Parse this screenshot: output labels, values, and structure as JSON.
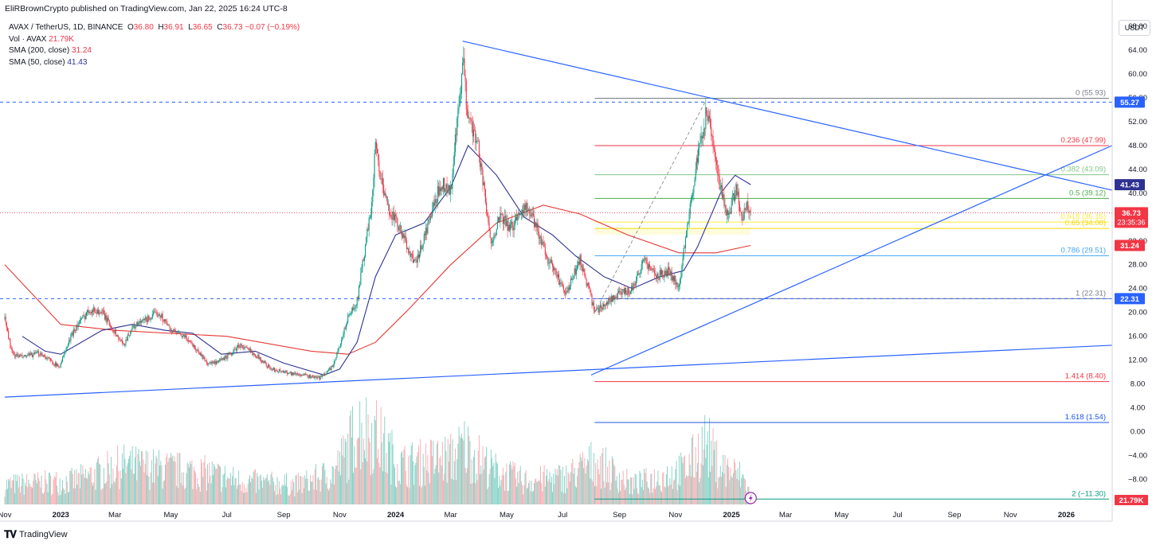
{
  "header": {
    "publisher_line": "EliRBrownCrypto published on TradingView.com, Jan 22, 2025 16:24 UTC-8"
  },
  "legend": {
    "symbol_line": "AVAX / TetherUS, 1D, BINANCE",
    "ohlc": {
      "O": "36.80",
      "H": "36.91",
      "L": "36.65",
      "C": "36.73",
      "change": "−0.07 (−0.19%)"
    },
    "volume": {
      "label": "Vol · AVAX",
      "value": "21.79K"
    },
    "sma200": {
      "label": "SMA (200, close)",
      "value": "31.24"
    },
    "sma50": {
      "label": "SMA (50, close)",
      "value": "41.43"
    }
  },
  "footer": {
    "brand": "TradingView",
    "logo": "tradingview-logo-icon"
  },
  "colors": {
    "up": "#089981",
    "down": "#f23645",
    "sma50": "#2e3192",
    "sma200": "#e53935",
    "trend": "#2962ff",
    "vol_up": "#7fd0c3",
    "vol_down": "#f7a9ae"
  },
  "chart_data": {
    "type": "candlestick",
    "symbol": "AVAX / TetherUS",
    "interval": "1D",
    "exchange": "BINANCE",
    "y_unit": "USDT",
    "ylim": [
      -13,
      70
    ],
    "y_ticks": [
      68,
      64,
      60,
      56,
      52,
      48,
      44,
      40,
      36,
      32,
      28,
      24,
      20,
      16,
      12,
      8,
      4,
      0,
      -4,
      -8
    ],
    "y_tick_labels": [
      "68.00",
      "64.00",
      "60.00",
      "56.00",
      "52.00",
      "48.00",
      "44.00",
      "40.00",
      "36.00",
      "32.00",
      "28.00",
      "24.00",
      "20.00",
      "16.00",
      "12.00",
      "8.00",
      "4.00",
      "0.00",
      "−4.00",
      "−8.00"
    ],
    "x_range": [
      "2022-11-01",
      "2026-02-20"
    ],
    "x_ticks": [
      {
        "date": "2022-11-01",
        "label": "Nov"
      },
      {
        "date": "2023-01-01",
        "label": "2023"
      },
      {
        "date": "2023-03-01",
        "label": "Mar"
      },
      {
        "date": "2023-05-01",
        "label": "May"
      },
      {
        "date": "2023-07-01",
        "label": "Jul"
      },
      {
        "date": "2023-09-01",
        "label": "Sep"
      },
      {
        "date": "2023-11-01",
        "label": "Nov"
      },
      {
        "date": "2024-01-01",
        "label": "2024"
      },
      {
        "date": "2024-03-01",
        "label": "Mar"
      },
      {
        "date": "2024-05-01",
        "label": "May"
      },
      {
        "date": "2024-07-01",
        "label": "Jul"
      },
      {
        "date": "2024-09-01",
        "label": "Sep"
      },
      {
        "date": "2024-11-01",
        "label": "Nov"
      },
      {
        "date": "2025-01-01",
        "label": "2025"
      },
      {
        "date": "2025-03-01",
        "label": "Mar"
      },
      {
        "date": "2025-05-01",
        "label": "May"
      },
      {
        "date": "2025-07-01",
        "label": "Jul"
      },
      {
        "date": "2025-09-01",
        "label": "Sep"
      },
      {
        "date": "2025-11-01",
        "label": "Nov"
      },
      {
        "date": "2026-01-01",
        "label": "2026"
      }
    ],
    "price_path": [
      [
        "2022-11-01",
        19
      ],
      [
        "2022-11-09",
        13
      ],
      [
        "2022-11-20",
        12.5
      ],
      [
        "2022-12-10",
        13.2
      ],
      [
        "2022-12-30",
        10.8
      ],
      [
        "2023-01-15",
        17
      ],
      [
        "2023-02-01",
        20.5
      ],
      [
        "2023-02-15",
        20
      ],
      [
        "2023-03-10",
        14.5
      ],
      [
        "2023-03-20",
        17.5
      ],
      [
        "2023-04-18",
        20
      ],
      [
        "2023-05-01",
        17
      ],
      [
        "2023-05-20",
        15.5
      ],
      [
        "2023-06-10",
        11.5
      ],
      [
        "2023-06-20",
        11.5
      ],
      [
        "2023-07-05",
        13
      ],
      [
        "2023-07-15",
        14.5
      ],
      [
        "2023-08-01",
        13
      ],
      [
        "2023-08-18",
        10.5
      ],
      [
        "2023-09-10",
        9.8
      ],
      [
        "2023-10-10",
        9
      ],
      [
        "2023-10-25",
        11
      ],
      [
        "2023-11-10",
        19
      ],
      [
        "2023-11-20",
        22
      ],
      [
        "2023-12-05",
        37
      ],
      [
        "2023-12-10",
        48
      ],
      [
        "2023-12-20",
        39
      ],
      [
        "2024-01-05",
        34
      ],
      [
        "2024-01-23",
        28
      ],
      [
        "2024-02-08",
        36
      ],
      [
        "2024-02-20",
        42
      ],
      [
        "2024-03-01",
        40
      ],
      [
        "2024-03-05",
        47
      ],
      [
        "2024-03-15",
        62
      ],
      [
        "2024-03-18",
        55
      ],
      [
        "2024-04-01",
        47
      ],
      [
        "2024-04-13",
        32
      ],
      [
        "2024-04-25",
        36
      ],
      [
        "2024-05-05",
        34
      ],
      [
        "2024-05-20",
        38
      ],
      [
        "2024-06-01",
        35
      ],
      [
        "2024-06-15",
        29
      ],
      [
        "2024-07-05",
        23
      ],
      [
        "2024-07-20",
        29
      ],
      [
        "2024-08-05",
        20
      ],
      [
        "2024-08-20",
        22
      ],
      [
        "2024-09-01",
        23
      ],
      [
        "2024-09-15",
        24
      ],
      [
        "2024-09-28",
        29
      ],
      [
        "2024-10-10",
        26
      ],
      [
        "2024-10-25",
        27
      ],
      [
        "2024-11-05",
        24
      ],
      [
        "2024-11-12",
        33
      ],
      [
        "2024-11-22",
        43
      ],
      [
        "2024-12-04",
        53
      ],
      [
        "2024-12-10",
        50
      ],
      [
        "2024-12-18",
        42
      ],
      [
        "2024-12-28",
        36
      ],
      [
        "2025-01-06",
        41
      ],
      [
        "2025-01-13",
        35
      ],
      [
        "2025-01-18",
        38.5
      ],
      [
        "2025-01-22",
        36.73
      ]
    ],
    "sma50_path": [
      [
        "2022-11-20",
        16
      ],
      [
        "2022-12-15",
        13.5
      ],
      [
        "2023-01-01",
        13
      ],
      [
        "2023-02-15",
        17
      ],
      [
        "2023-03-20",
        18
      ],
      [
        "2023-04-25",
        17
      ],
      [
        "2023-05-25",
        16.5
      ],
      [
        "2023-06-25",
        13
      ],
      [
        "2023-08-01",
        13.5
      ],
      [
        "2023-09-01",
        11.5
      ],
      [
        "2023-10-15",
        9.5
      ],
      [
        "2023-11-01",
        10.5
      ],
      [
        "2023-11-20",
        15
      ],
      [
        "2023-12-10",
        26
      ],
      [
        "2024-01-01",
        33
      ],
      [
        "2024-02-01",
        35
      ],
      [
        "2024-03-01",
        41
      ],
      [
        "2024-03-20",
        48
      ],
      [
        "2024-04-20",
        43
      ],
      [
        "2024-05-20",
        36
      ],
      [
        "2024-06-20",
        33
      ],
      [
        "2024-07-15",
        29.5
      ],
      [
        "2024-08-15",
        26
      ],
      [
        "2024-09-15",
        24
      ],
      [
        "2024-10-15",
        26
      ],
      [
        "2024-11-10",
        27
      ],
      [
        "2024-11-25",
        31
      ],
      [
        "2024-12-20",
        40
      ],
      [
        "2025-01-05",
        43
      ],
      [
        "2025-01-22",
        41.43
      ]
    ],
    "sma200_path": [
      [
        "2022-11-01",
        28
      ],
      [
        "2023-01-01",
        18
      ],
      [
        "2023-03-01",
        17
      ],
      [
        "2023-07-01",
        16
      ],
      [
        "2023-10-01",
        13.5
      ],
      [
        "2023-11-10",
        13
      ],
      [
        "2023-12-10",
        15
      ],
      [
        "2024-01-15",
        20.5
      ],
      [
        "2024-03-01",
        28
      ],
      [
        "2024-04-20",
        35
      ],
      [
        "2024-06-10",
        38
      ],
      [
        "2024-07-20",
        36.5
      ],
      [
        "2024-09-10",
        33
      ],
      [
        "2024-11-05",
        30
      ],
      [
        "2024-12-15",
        30
      ],
      [
        "2025-01-22",
        31.24
      ]
    ],
    "volume_path": [
      [
        "2022-11-01",
        0.25
      ],
      [
        "2023-01-15",
        0.3
      ],
      [
        "2023-03-10",
        0.5
      ],
      [
        "2023-06-10",
        0.4
      ],
      [
        "2023-07-15",
        0.3
      ],
      [
        "2023-09-15",
        0.25
      ],
      [
        "2023-10-25",
        0.4
      ],
      [
        "2023-11-10",
        0.7
      ],
      [
        "2023-11-20",
        1.0
      ],
      [
        "2023-12-10",
        0.9
      ],
      [
        "2024-01-05",
        0.5
      ],
      [
        "2024-03-05",
        0.6
      ],
      [
        "2024-03-15",
        0.75
      ],
      [
        "2024-04-15",
        0.45
      ],
      [
        "2024-05-20",
        0.3
      ],
      [
        "2024-07-05",
        0.35
      ],
      [
        "2024-08-05",
        0.55
      ],
      [
        "2024-09-15",
        0.25
      ],
      [
        "2024-11-12",
        0.45
      ],
      [
        "2024-12-04",
        0.8
      ],
      [
        "2024-12-18",
        0.5
      ],
      [
        "2025-01-13",
        0.35
      ],
      [
        "2025-01-22",
        0.12
      ]
    ],
    "volume_label": "21.79K",
    "horizontal_levels": [
      {
        "price": 55.27,
        "label": "55.27",
        "style": "dashed",
        "color": "#2962ff"
      },
      {
        "price": 22.31,
        "label": "22.31",
        "style": "dashed",
        "color": "#2962ff"
      }
    ],
    "price_line": {
      "price": 36.73,
      "label": "36.73",
      "countdown": "23:35:36",
      "color": "#f23645"
    },
    "axis_badges": [
      {
        "price": 41.43,
        "label": "41.43",
        "color": "#2e3192"
      },
      {
        "price": 31.24,
        "label": "31.24",
        "color": "#f23645"
      }
    ],
    "fib": {
      "start_date": "2024-08-05",
      "end_date": "2025-01-22",
      "levels": [
        {
          "ratio": "0",
          "price": 55.93,
          "label": "0 (55.93)",
          "color": "#787b86"
        },
        {
          "ratio": "0.236",
          "price": 47.99,
          "label": "0.236 (47.99)",
          "color": "#f23645"
        },
        {
          "ratio": "0.382",
          "price": 43.09,
          "label": "0.382 (43.09)",
          "color": "#81c784"
        },
        {
          "ratio": "0.5",
          "price": 39.12,
          "label": "0.5 (39.12)",
          "color": "#4caf50"
        },
        {
          "ratio": "0.618",
          "price": 35.15,
          "label": "0.618 (35.15)",
          "color": "#ffeb3b"
        },
        {
          "ratio": "0.65",
          "price": 34.08,
          "label": "0.65 (34.08)",
          "color": "#f5d800"
        },
        {
          "ratio": "0.786",
          "price": 29.51,
          "label": "0.786 (29.51)",
          "color": "#42a5f5"
        },
        {
          "ratio": "1",
          "price": 22.31,
          "label": "1 (22.31)",
          "color": "#787b86"
        },
        {
          "ratio": "1.414",
          "price": 8.4,
          "label": "1.414 (8.40)",
          "color": "#f23645"
        },
        {
          "ratio": "1.618",
          "price": 1.54,
          "label": "1.618 (1.54)",
          "color": "#1e53e5"
        },
        {
          "ratio": "2",
          "price": -11.3,
          "label": "2 (−11.30)",
          "color": "#089981"
        }
      ]
    },
    "trendlines": [
      {
        "name": "descending-resistance",
        "from": [
          "2024-03-14",
          65.5
        ],
        "to": [
          "2026-02-20",
          40.5
        ]
      },
      {
        "name": "ascending-support",
        "from": [
          "2024-08-01",
          9.5
        ],
        "to": [
          "2026-02-20",
          48
        ]
      },
      {
        "name": "long-term-support",
        "from": [
          "2022-11-01",
          5.8
        ],
        "to": [
          "2026-02-20",
          14.5
        ]
      }
    ],
    "dashed_diagonal": {
      "from": [
        "2024-08-05",
        20
      ],
      "to": [
        "2024-12-04",
        55.5
      ]
    }
  }
}
